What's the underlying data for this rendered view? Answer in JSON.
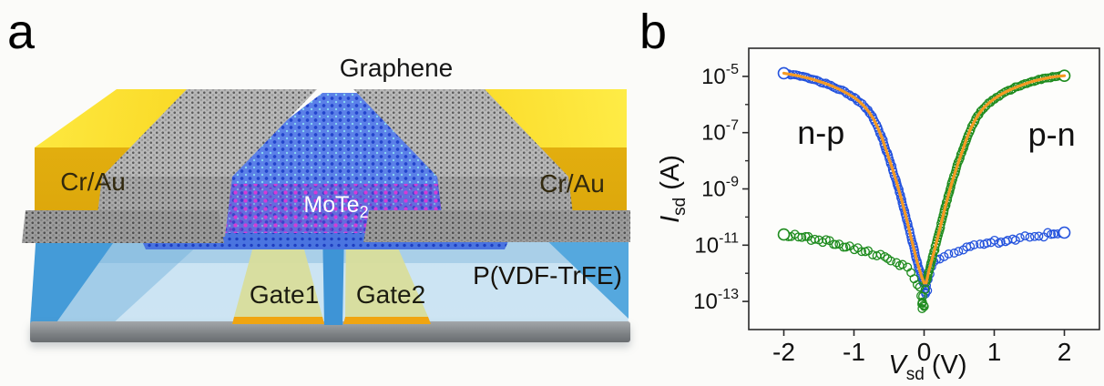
{
  "figure": {
    "panel_a": {
      "label": "a",
      "graphene_label": "Graphene",
      "electrode_left_label": "Cr/Au",
      "electrode_right_label": "Cr/Au",
      "channel_label_main": "MoTe",
      "channel_label_sub": "2",
      "substrate_label": "P(VDF-TrFE)",
      "gate1_label": "Gate1",
      "gate2_label": "Gate2"
    },
    "panel_b": {
      "label": "b"
    },
    "colors": {
      "np_blue": "#2453dd",
      "pn_green": "#1f8c1f",
      "fit_orange": "#f59a23",
      "gold_electrode": "#eebf10",
      "substrate_blue": "#bcdcee",
      "substrate_accent_blue": "#449bd8",
      "gate_yellow_green": "#d8dd9b",
      "gate_edge_orange": "#f0a511",
      "mote2_blue": "#5b80e8",
      "mote2_magenta": "#d63ad6",
      "graphene_gray": "#a9a9a9",
      "base_gray": "#8d9093"
    }
  },
  "chart_data": {
    "type": "scatter",
    "title": "",
    "xlabel": {
      "var": "V",
      "sub": "sd",
      "unit": "(V)"
    },
    "ylabel": {
      "var": "I",
      "sub": "sd",
      "unit": "(A)"
    },
    "xlim": [
      -2.5,
      2.5
    ],
    "x_ticks": [
      -2,
      -1,
      0,
      1,
      2
    ],
    "y_axis_log": true,
    "ylim_exponents": [
      -4,
      -14
    ],
    "y_tick_exponents": [
      -5,
      -7,
      -9,
      -11,
      -13
    ],
    "y_minor_exponents": [
      -6,
      -8,
      -10,
      -12
    ],
    "grid": false,
    "fit_line_color": "#f59a23",
    "legend_annotations": [
      {
        "text": "n-p",
        "color": "#2453dd",
        "x": -1.47,
        "y_exponent": -7.4
      },
      {
        "text": "p-n",
        "color": "#1f8c1f",
        "x": 1.82,
        "y_exponent": -7.46
      }
    ],
    "series": [
      {
        "name": "n-p on branch",
        "color": "#2453dd",
        "marker": "open-circle",
        "role": "on",
        "points": [
          [
            -2.0,
            1.3e-05
          ],
          [
            -1.9,
            1.17e-05
          ],
          [
            -1.8,
            1.05e-05
          ],
          [
            -1.7,
            9.2e-06
          ],
          [
            -1.6,
            8e-06
          ],
          [
            -1.5,
            6.7e-06
          ],
          [
            -1.4,
            5.5e-06
          ],
          [
            -1.3,
            4.4e-06
          ],
          [
            -1.2,
            3.4e-06
          ],
          [
            -1.1,
            2.5e-06
          ],
          [
            -1.0,
            1.8e-06
          ],
          [
            -0.92,
            1.25e-06
          ],
          [
            -0.85,
            8.5e-07
          ],
          [
            -0.78,
            5.2e-07
          ],
          [
            -0.72,
            3e-07
          ],
          [
            -0.66,
            1.5e-07
          ],
          [
            -0.6,
            6.5e-08
          ],
          [
            -0.55,
            2.8e-08
          ],
          [
            -0.5,
            1.2e-08
          ],
          [
            -0.45,
            5e-09
          ],
          [
            -0.4,
            2e-09
          ],
          [
            -0.35,
            7.5e-10
          ],
          [
            -0.3,
            2.6e-10
          ],
          [
            -0.25,
            8.5e-11
          ],
          [
            -0.2,
            2.6e-11
          ],
          [
            -0.15,
            8e-12
          ],
          [
            -0.1,
            2.6e-12
          ],
          [
            -0.06,
            1.2e-12
          ],
          [
            -0.03,
            7e-13
          ],
          [
            0.0,
            4.5e-13
          ]
        ]
      },
      {
        "name": "n-p off branch",
        "color": "#2453dd",
        "marker": "open-circle",
        "role": "off",
        "points": [
          [
            0.04,
            7e-13
          ],
          [
            0.07,
            1.1e-12
          ],
          [
            0.1,
            1.7e-12
          ],
          [
            0.14,
            2.4e-12
          ],
          [
            0.18,
            3e-12
          ],
          [
            0.22,
            3.6e-12
          ],
          [
            0.28,
            4.3e-12
          ],
          [
            0.35,
            5e-12
          ],
          [
            0.42,
            5.7e-12
          ],
          [
            0.5,
            6.4e-12
          ],
          [
            0.6,
            7.4e-12
          ],
          [
            0.72,
            8.8e-12
          ],
          [
            0.85,
            1.05e-11
          ],
          [
            1.0,
            1.3e-11
          ],
          [
            1.15,
            1.5e-11
          ],
          [
            1.3,
            1.7e-11
          ],
          [
            1.5,
            2e-11
          ],
          [
            1.7,
            2.3e-11
          ],
          [
            1.85,
            2.5e-11
          ],
          [
            2.0,
            2.8e-11
          ]
        ]
      },
      {
        "name": "n-p minimum cluster",
        "color": "#2453dd",
        "marker": "open-circle",
        "role": "dip",
        "points": [
          [
            -0.01,
            4e-13
          ],
          [
            0.005,
            2.5e-13
          ],
          [
            0.015,
            1.7e-13
          ],
          [
            0.03,
            3e-13
          ],
          [
            0.05,
            5.5e-13
          ]
        ]
      },
      {
        "name": "p-n on branch",
        "color": "#1f8c1f",
        "marker": "open-circle",
        "role": "on",
        "points": [
          [
            0.03,
            4.5e-13
          ],
          [
            0.06,
            1e-12
          ],
          [
            0.1,
            2.4e-12
          ],
          [
            0.15,
            7e-12
          ],
          [
            0.2,
            2.2e-11
          ],
          [
            0.25,
            7e-11
          ],
          [
            0.3,
            2.2e-10
          ],
          [
            0.35,
            6.5e-10
          ],
          [
            0.4,
            1.8e-09
          ],
          [
            0.45,
            4.5e-09
          ],
          [
            0.5,
            1.05e-08
          ],
          [
            0.55,
            2.4e-08
          ],
          [
            0.6,
            5.5e-08
          ],
          [
            0.66,
            1.3e-07
          ],
          [
            0.72,
            2.6e-07
          ],
          [
            0.78,
            4.6e-07
          ],
          [
            0.85,
            7.6e-07
          ],
          [
            0.92,
            1.1e-06
          ],
          [
            1.0,
            1.6e-06
          ],
          [
            1.1,
            2.3e-06
          ],
          [
            1.2,
            3.1e-06
          ],
          [
            1.3,
            4e-06
          ],
          [
            1.4,
            5e-06
          ],
          [
            1.5,
            6.1e-06
          ],
          [
            1.6,
            7.2e-06
          ],
          [
            1.7,
            8.2e-06
          ],
          [
            1.8,
            9.2e-06
          ],
          [
            1.9,
            1e-05
          ],
          [
            2.0,
            1.05e-05
          ]
        ]
      },
      {
        "name": "p-n off branch",
        "color": "#1f8c1f",
        "marker": "open-circle",
        "role": "off",
        "points": [
          [
            -2.0,
            2.4e-11
          ],
          [
            -1.85,
            2.1e-11
          ],
          [
            -1.7,
            1.85e-11
          ],
          [
            -1.55,
            1.6e-11
          ],
          [
            -1.4,
            1.35e-11
          ],
          [
            -1.25,
            1.1e-11
          ],
          [
            -1.1,
            9e-12
          ],
          [
            -0.95,
            7.2e-12
          ],
          [
            -0.8,
            5.6e-12
          ],
          [
            -0.68,
            4.5e-12
          ],
          [
            -0.56,
            3.6e-12
          ],
          [
            -0.46,
            2.9e-12
          ],
          [
            -0.38,
            2.4e-12
          ],
          [
            -0.3,
            1.8e-12
          ],
          [
            -0.24,
            1.4e-12
          ],
          [
            -0.18,
            1e-12
          ],
          [
            -0.13,
            7e-13
          ],
          [
            -0.09,
            4.5e-13
          ],
          [
            -0.06,
            3e-13
          ]
        ]
      },
      {
        "name": "p-n minimum cluster",
        "color": "#1f8c1f",
        "marker": "open-circle",
        "role": "dip",
        "points": [
          [
            -0.05,
            1.9e-13
          ],
          [
            -0.04,
            1.1e-13
          ],
          [
            -0.03,
            7e-14
          ],
          [
            -0.02,
            4.5e-14
          ],
          [
            -0.01,
            8e-14
          ],
          [
            0.0,
            1.4e-13
          ],
          [
            0.01,
            2.2e-13
          ]
        ]
      }
    ]
  }
}
